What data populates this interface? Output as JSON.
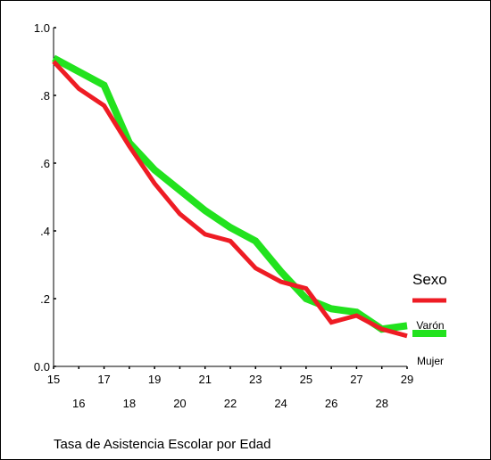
{
  "chart_data": {
    "type": "line",
    "title": "",
    "xlabel": "Tasa de Asistencia Escolar por Edad",
    "ylabel": "",
    "x": [
      15,
      16,
      17,
      18,
      19,
      20,
      21,
      22,
      23,
      24,
      25,
      26,
      27,
      28,
      29
    ],
    "xlim": [
      15,
      29
    ],
    "ylim": [
      0,
      1
    ],
    "yticks": [
      0,
      0.2,
      0.4,
      0.6,
      0.8,
      1.0
    ],
    "ytick_labels": [
      "0.0",
      ".2",
      ".4",
      ".6",
      ".8",
      "1.0"
    ],
    "xtick_labels_top_row": [
      "15",
      "17",
      "19",
      "21",
      "23",
      "25",
      "27",
      "29"
    ],
    "xtick_labels_bottom_row": [
      "16",
      "18",
      "20",
      "22",
      "24",
      "26",
      "28"
    ],
    "grid": false,
    "legend": {
      "title": "Sexo",
      "position": "right"
    },
    "series": [
      {
        "name": "Varón",
        "color": "#ee1c24",
        "values": [
          0.9,
          0.82,
          0.77,
          0.65,
          0.54,
          0.45,
          0.39,
          0.37,
          0.29,
          0.25,
          0.23,
          0.13,
          0.15,
          0.11,
          0.09
        ]
      },
      {
        "name": "Mujer",
        "color": "#22e21e",
        "values": [
          0.91,
          0.87,
          0.83,
          0.66,
          0.58,
          0.52,
          0.46,
          0.41,
          0.37,
          0.28,
          0.2,
          0.17,
          0.16,
          0.11,
          0.12
        ]
      }
    ]
  }
}
